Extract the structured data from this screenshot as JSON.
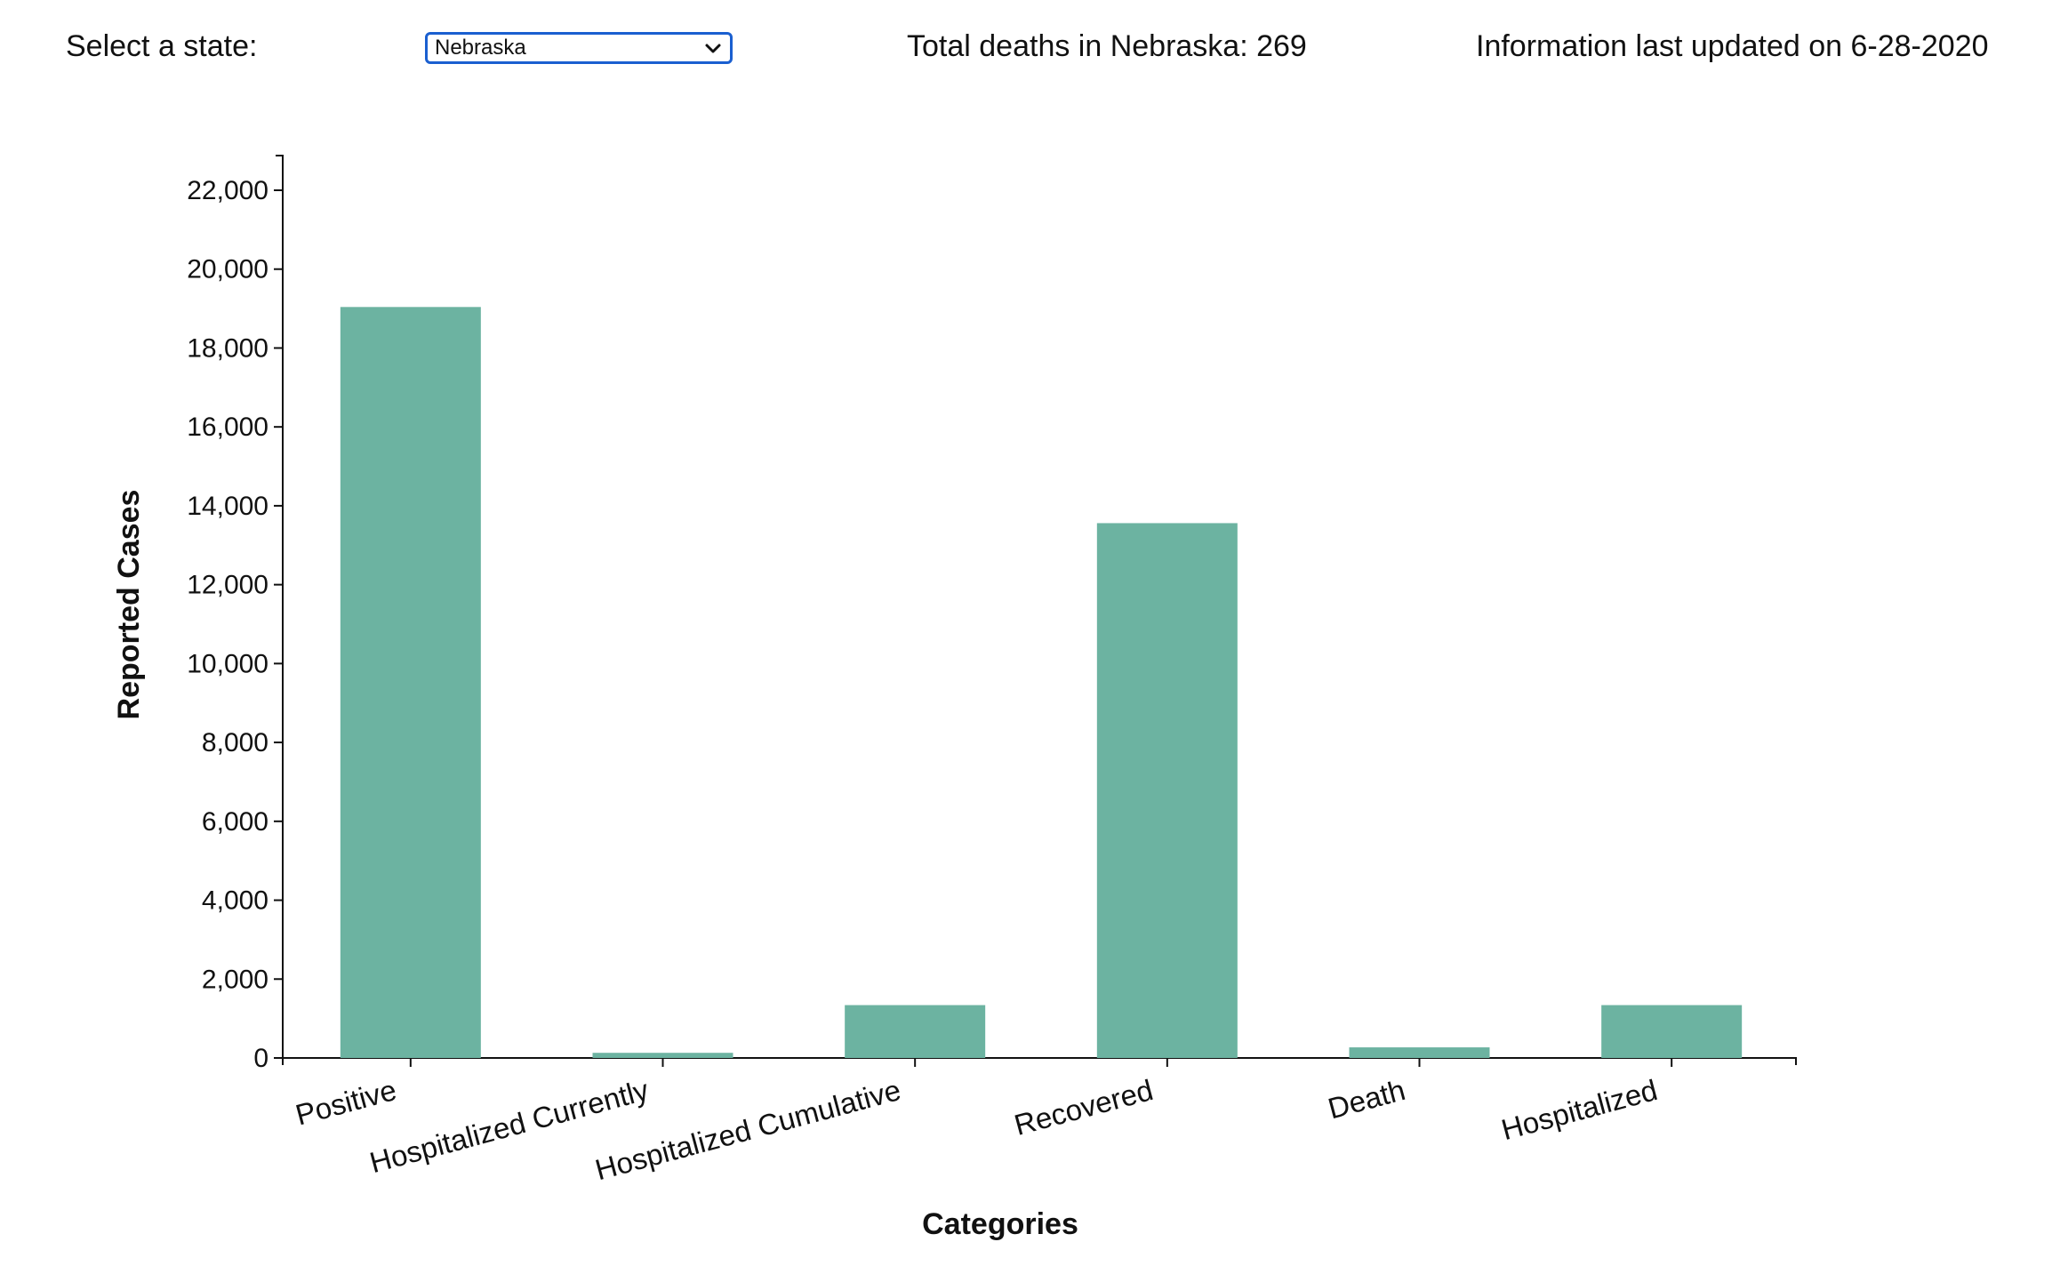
{
  "controls": {
    "select_label": "Select a state:",
    "selected_state": "Nebraska",
    "total_deaths_text": "Total deaths in Nebraska: 269",
    "updated_text": "Information last updated on 6-28-2020"
  },
  "colors": {
    "bar": "#6cb3a1",
    "axis": "#111111",
    "select_border": "#1a5fd0"
  },
  "chart_data": {
    "type": "bar",
    "categories": [
      "Positive",
      "Hospitalized Currently",
      "Hospitalized Cumulative",
      "Recovered",
      "Death",
      "Hospitalized"
    ],
    "values": [
      19040,
      130,
      1340,
      13560,
      269,
      1340
    ],
    "xlabel": "Categories",
    "ylabel": "Reported Cases",
    "ylim": [
      0,
      22000
    ],
    "yticks": [
      0,
      2000,
      4000,
      6000,
      8000,
      10000,
      12000,
      14000,
      16000,
      18000,
      20000,
      22000
    ],
    "ytick_labels": [
      "0",
      "2,000",
      "4,000",
      "6,000",
      "8,000",
      "10,000",
      "12,000",
      "14,000",
      "16,000",
      "18,000",
      "20,000",
      "22,000"
    ],
    "grid": false,
    "legend": "none"
  }
}
